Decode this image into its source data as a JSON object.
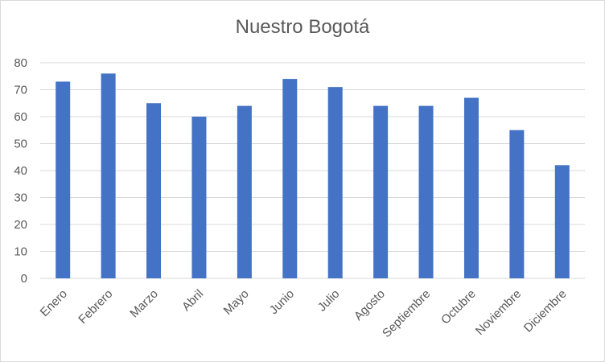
{
  "chart_data": {
    "type": "bar",
    "title": "Nuestro Bogotá",
    "xlabel": "",
    "ylabel": "",
    "categories": [
      "Enero",
      "Febrero",
      "Marzo",
      "Abril",
      "Mayo",
      "Junio",
      "Julio",
      "Agosto",
      "Septiembre",
      "Octubre",
      "Noviembre",
      "Diciembre"
    ],
    "values": [
      73,
      76,
      65,
      60,
      64,
      74,
      71,
      64,
      64,
      67,
      55,
      42
    ],
    "ylim": [
      0,
      80
    ],
    "yticks": [
      0,
      10,
      20,
      30,
      40,
      50,
      60,
      70,
      80
    ],
    "grid": true,
    "legend": "none",
    "bar_color": "#4472c4",
    "grid_color": "#d9d9d9"
  }
}
